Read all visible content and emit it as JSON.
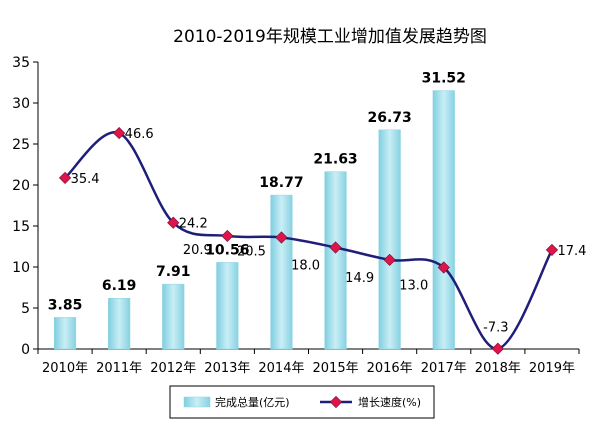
{
  "chart_data": {
    "type": "bar",
    "title": "2010-2019年规模工业增加值发展趋势图",
    "categories": [
      "2010年",
      "2011年",
      "2012年",
      "2013年",
      "2014年",
      "2015年",
      "2016年",
      "2017年",
      "2018年",
      "2019年"
    ],
    "ylim": [
      0,
      35
    ],
    "yticks": [
      "0",
      "5",
      "10",
      "15",
      "20",
      "25",
      "30",
      "35"
    ],
    "grid": false,
    "legend_position": "bottom",
    "series": [
      {
        "name": "完成总量(亿元)",
        "kind": "bar",
        "color": "#a8dde9",
        "values": [
          3.85,
          6.19,
          7.91,
          10.56,
          18.77,
          21.63,
          26.73,
          31.52,
          null,
          null
        ],
        "labels": [
          "3.85",
          "6.19",
          "7.91",
          "10.56",
          "18.77",
          "21.63",
          "26.73",
          "31.52",
          "",
          ""
        ]
      },
      {
        "name": "增长速度(%)",
        "kind": "line",
        "color": "#1f1f7a",
        "marker_color": "#e0144c",
        "values": [
          35.4,
          46.6,
          24.2,
          20.9,
          20.5,
          18.0,
          14.9,
          13.0,
          -7.3,
          17.4
        ],
        "labels": [
          "35.4",
          "46.6",
          "24.2",
          "20.9",
          "20.5",
          "18.0",
          "14.9",
          "13.0",
          "-7.3",
          "17.4"
        ]
      }
    ]
  }
}
